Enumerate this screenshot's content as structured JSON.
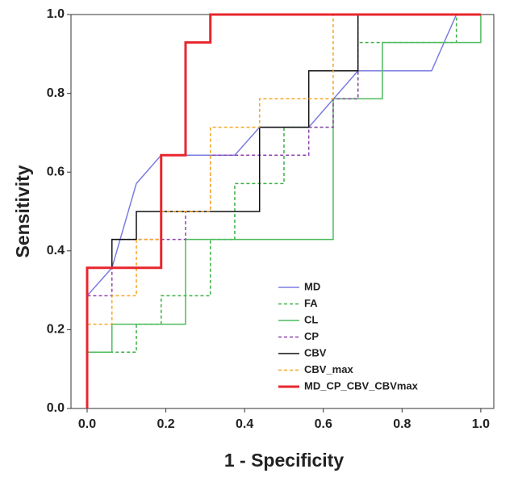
{
  "chart_data": {
    "type": "line",
    "x_label": "1 - Specificity",
    "y_label": "Sensitivity",
    "xlim": [
      -0.041,
      1.033
    ],
    "ylim": [
      0,
      1
    ],
    "xticks": [
      {
        "value": 0,
        "label": "0.0"
      },
      {
        "value": 0.2,
        "label": "0.2"
      },
      {
        "value": 0.4,
        "label": "0.4"
      },
      {
        "value": 0.6,
        "label": "0.6"
      },
      {
        "value": 0.8,
        "label": "0.8"
      },
      {
        "value": 1,
        "label": "1.0"
      }
    ],
    "yticks": [
      {
        "value": 0,
        "label": "0.0"
      },
      {
        "value": 0.2,
        "label": "0.2"
      },
      {
        "value": 0.4,
        "label": "0.4"
      },
      {
        "value": 0.6,
        "label": "0.6"
      },
      {
        "value": 0.8,
        "label": "0.8"
      },
      {
        "value": 1,
        "label": "1.0"
      }
    ],
    "grid": false,
    "series": [
      {
        "name": "MD",
        "color": "#7b7be0",
        "dash": "solid",
        "width": 1.5,
        "x": [
          0,
          0,
          0.063,
          0.125,
          0.188,
          0.375,
          0.438,
          0.563,
          0.688,
          0.875,
          0.938,
          1
        ],
        "values": [
          0,
          0.286,
          0.357,
          0.571,
          0.643,
          0.643,
          0.714,
          0.714,
          0.857,
          0.857,
          1,
          1
        ]
      },
      {
        "name": "FA",
        "color": "#3cb043",
        "dash": "dashed",
        "width": 1.5,
        "x": [
          0,
          0,
          0.125,
          0.125,
          0.188,
          0.188,
          0.313,
          0.313,
          0.375,
          0.375,
          0.5,
          0.5,
          0.625,
          0.625,
          0.688,
          0.688,
          0.938,
          0.938,
          1
        ],
        "values": [
          0,
          0.143,
          0.143,
          0.214,
          0.214,
          0.286,
          0.286,
          0.429,
          0.429,
          0.571,
          0.571,
          0.714,
          0.714,
          0.786,
          0.786,
          0.929,
          0.929,
          1,
          1
        ]
      },
      {
        "name": "CL",
        "color": "#4cbb5c",
        "dash": "solid",
        "width": 1.5,
        "x": [
          0,
          0,
          0.063,
          0.063,
          0.25,
          0.25,
          0.625,
          0.625,
          0.75,
          0.75,
          1,
          1
        ],
        "values": [
          0,
          0.143,
          0.143,
          0.214,
          0.214,
          0.429,
          0.429,
          0.786,
          0.786,
          0.929,
          0.929,
          1
        ]
      },
      {
        "name": "CP",
        "color": "#8e44ad",
        "dash": "dashed",
        "width": 1.5,
        "x": [
          0,
          0,
          0.063,
          0.063,
          0.25,
          0.25,
          0.313,
          0.313,
          0.563,
          0.563,
          0.625,
          0.625,
          0.688,
          0.688,
          1
        ],
        "values": [
          0,
          0.286,
          0.286,
          0.429,
          0.429,
          0.5,
          0.5,
          0.643,
          0.643,
          0.714,
          0.714,
          0.786,
          0.786,
          1,
          1
        ]
      },
      {
        "name": "CBV",
        "color": "#111111",
        "dash": "solid",
        "width": 1.5,
        "x": [
          0,
          0,
          0.063,
          0.063,
          0.125,
          0.125,
          0.438,
          0.438,
          0.563,
          0.563,
          0.688,
          0.688,
          1
        ],
        "values": [
          0,
          0.357,
          0.357,
          0.429,
          0.429,
          0.5,
          0.5,
          0.714,
          0.714,
          0.857,
          0.857,
          1,
          1
        ]
      },
      {
        "name": "CBV_max",
        "color": "#f5a623",
        "dash": "dashed",
        "width": 1.5,
        "x": [
          0,
          0,
          0.063,
          0.063,
          0.125,
          0.125,
          0.188,
          0.188,
          0.313,
          0.313,
          0.438,
          0.438,
          0.625,
          0.625,
          1
        ],
        "values": [
          0,
          0.214,
          0.214,
          0.286,
          0.286,
          0.429,
          0.429,
          0.5,
          0.5,
          0.714,
          0.714,
          0.786,
          0.786,
          1,
          1
        ]
      },
      {
        "name": "MD_CP_CBV_CBVmax",
        "color": "#e8262d",
        "dash": "solid",
        "width": 3,
        "x": [
          0,
          0,
          0.188,
          0.188,
          0.25,
          0.25,
          0.313,
          0.313,
          1
        ],
        "values": [
          0,
          0.357,
          0.357,
          0.643,
          0.643,
          0.929,
          0.929,
          1,
          1
        ]
      }
    ]
  }
}
